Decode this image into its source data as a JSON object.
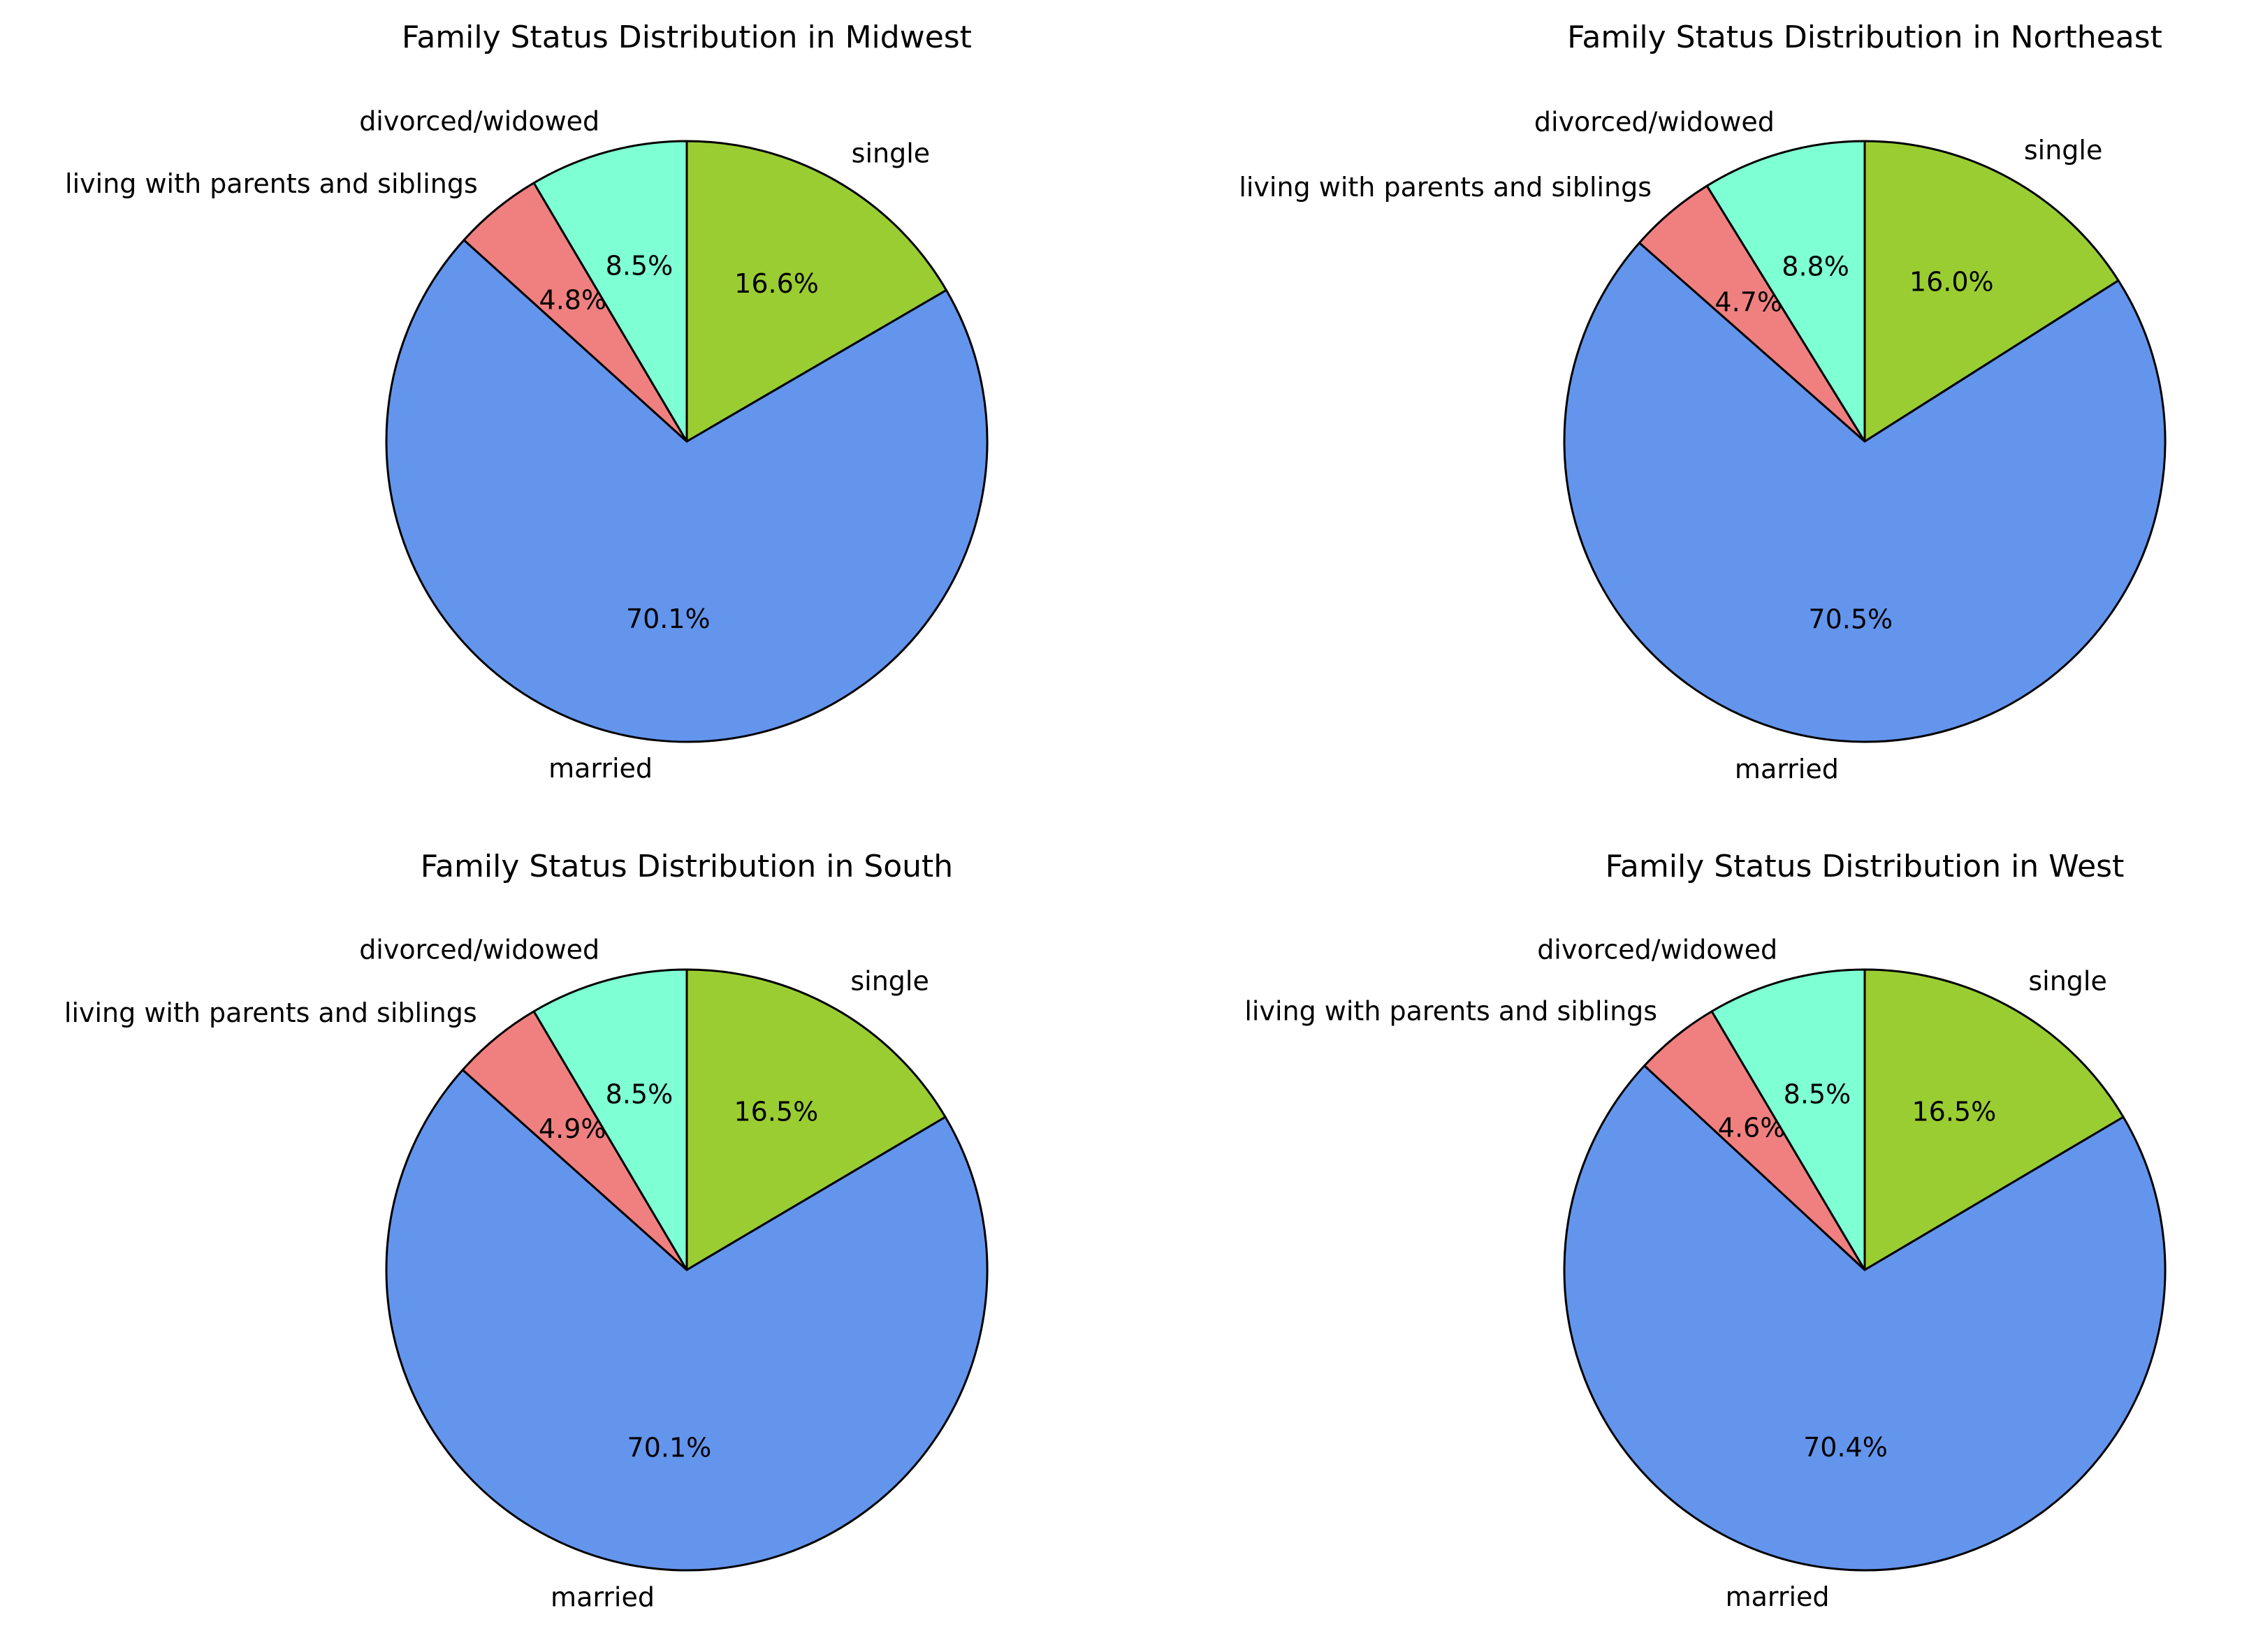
{
  "chart_data": [
    {
      "type": "pie",
      "title": "Family Status Distribution in Midwest",
      "labels": [
        "single",
        "married",
        "living with parents and siblings",
        "divorced/widowed"
      ],
      "values": [
        16.6,
        70.1,
        4.8,
        8.5
      ],
      "value_labels": [
        "16.6%",
        "70.1%",
        "4.8%",
        "8.5%"
      ],
      "colors": [
        "#9acd32",
        "#6495ed",
        "#f08080",
        "#7fffd4"
      ]
    },
    {
      "type": "pie",
      "title": "Family Status Distribution in Northeast",
      "labels": [
        "single",
        "married",
        "living with parents and siblings",
        "divorced/widowed"
      ],
      "values": [
        16.0,
        70.5,
        4.7,
        8.8
      ],
      "value_labels": [
        "16.0%",
        "70.5%",
        "4.7%",
        "8.8%"
      ],
      "colors": [
        "#9acd32",
        "#6495ed",
        "#f08080",
        "#7fffd4"
      ]
    },
    {
      "type": "pie",
      "title": "Family Status Distribution in South",
      "labels": [
        "single",
        "married",
        "living with parents and siblings",
        "divorced/widowed"
      ],
      "values": [
        16.5,
        70.1,
        4.9,
        8.5
      ],
      "value_labels": [
        "16.5%",
        "70.1%",
        "4.9%",
        "8.5%"
      ],
      "colors": [
        "#9acd32",
        "#6495ed",
        "#f08080",
        "#7fffd4"
      ]
    },
    {
      "type": "pie",
      "title": "Family Status Distribution in West",
      "labels": [
        "single",
        "married",
        "living with parents and siblings",
        "divorced/widowed"
      ],
      "values": [
        16.5,
        70.4,
        4.6,
        8.5
      ],
      "value_labels": [
        "16.5%",
        "70.4%",
        "4.6%",
        "8.5%"
      ],
      "colors": [
        "#9acd32",
        "#6495ed",
        "#f08080",
        "#7fffd4"
      ]
    }
  ]
}
